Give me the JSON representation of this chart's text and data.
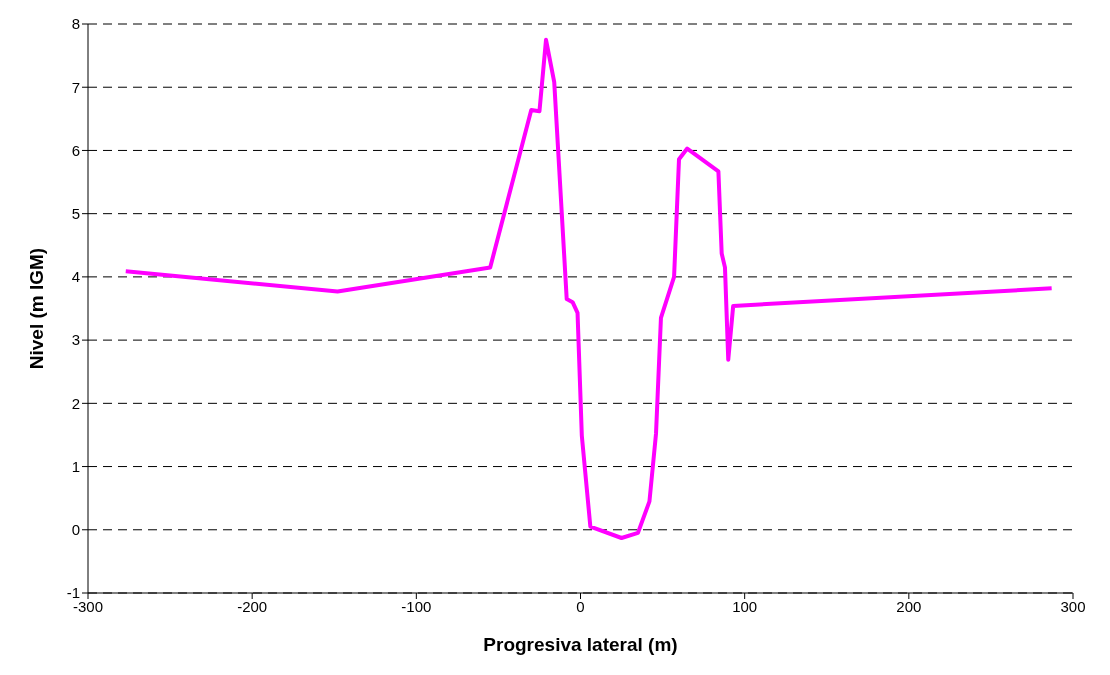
{
  "chart_data": {
    "type": "line",
    "xlabel": "Progresiva lateral (m)",
    "ylabel": "Nivel (m IGM)",
    "x": [
      -277,
      -148,
      -55,
      -30,
      -25,
      -21,
      -16,
      -8.4,
      -4.8,
      -1.8,
      0.8,
      6,
      25,
      35,
      42,
      46,
      49,
      57,
      60,
      65,
      84,
      86,
      88,
      90,
      93,
      287
    ],
    "series": [
      {
        "color": "#ff00ff",
        "values": [
          4.09,
          3.77,
          4.15,
          6.64,
          6.62,
          7.75,
          7.08,
          3.65,
          3.6,
          3.43,
          1.49,
          0.05,
          -0.13,
          -0.05,
          0.45,
          1.52,
          3.35,
          4.0,
          5.86,
          6.03,
          5.67,
          4.37,
          4.15,
          2.69,
          3.54,
          3.82
        ]
      }
    ],
    "xlim": [
      -300,
      300
    ],
    "xticks": [
      -300,
      -200,
      -100,
      0,
      100,
      200,
      300
    ],
    "ylim": [
      -1,
      8
    ],
    "yticks": [
      -1,
      0,
      1,
      2,
      3,
      4,
      5,
      6,
      7,
      8
    ],
    "grid": "y",
    "legend": false,
    "marker": "none",
    "line_style": "solid"
  }
}
